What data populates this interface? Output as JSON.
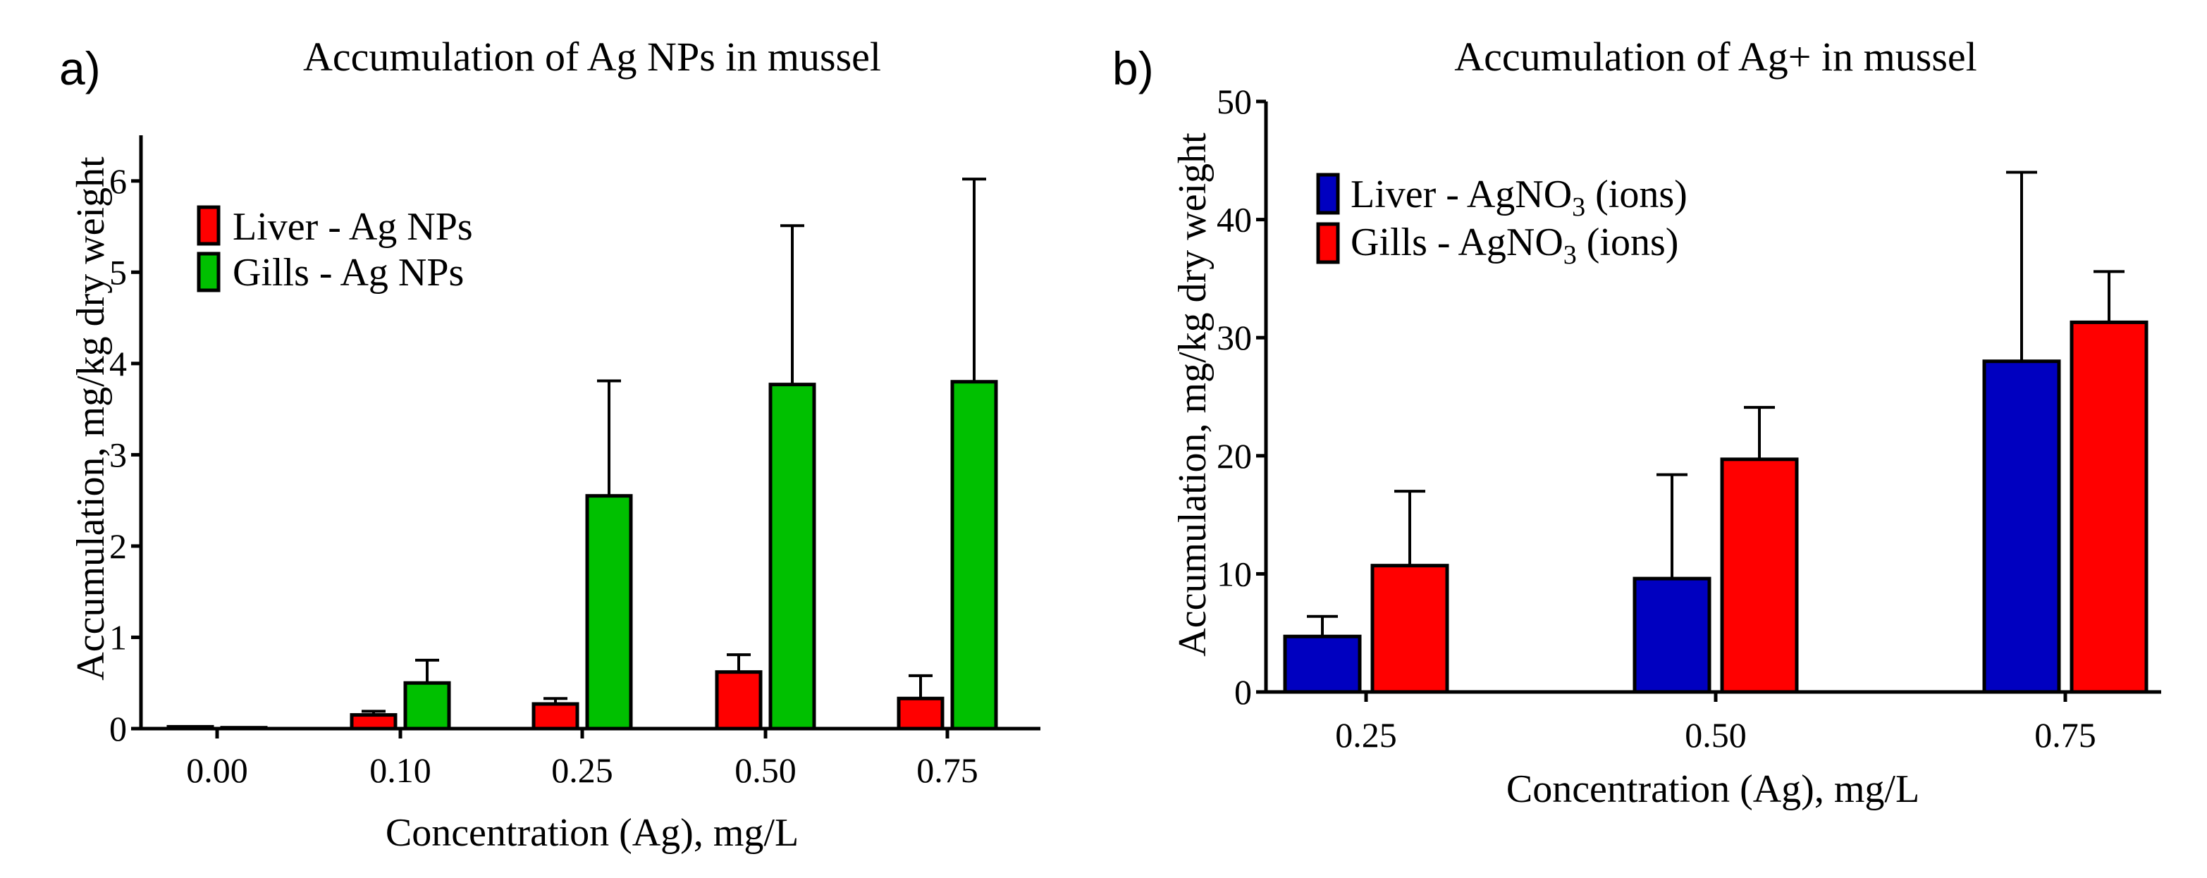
{
  "chart_data": [
    {
      "panel_label": "a)",
      "type": "bar",
      "title": "Accumulation of Ag NPs in mussel",
      "xlabel": "Concentration (Ag), mg/L",
      "ylabel": "Accumulation, mg/kg dry weight",
      "categories": [
        "0.00",
        "0.10",
        "0.25",
        "0.50",
        "0.75"
      ],
      "ylim": [
        0,
        6.5
      ],
      "yticks": [
        "0",
        "1",
        "2",
        "3",
        "4",
        "5",
        "6"
      ],
      "legend_position": "top-left",
      "series": [
        {
          "name": "Liver - Ag NPs",
          "color": "#ff0000",
          "values": [
            0.02,
            0.15,
            0.27,
            0.62,
            0.33
          ],
          "errors": [
            0.0,
            0.04,
            0.06,
            0.19,
            0.25
          ]
        },
        {
          "name": "Gills - Ag NPs",
          "color": "#00c000",
          "values": [
            0.01,
            0.5,
            2.55,
            3.77,
            3.8
          ],
          "errors": [
            0.0,
            0.25,
            1.26,
            1.74,
            2.22
          ]
        }
      ]
    },
    {
      "panel_label": "b)",
      "type": "bar",
      "title": "Accumulation of Ag+ in mussel",
      "xlabel": "Concentration (Ag), mg/L",
      "ylabel": "Accumulation, mg/kg dry weight",
      "categories": [
        "0.25",
        "0.50",
        "0.75"
      ],
      "ylim": [
        0,
        50
      ],
      "yticks": [
        "0",
        "10",
        "20",
        "30",
        "40",
        "50"
      ],
      "legend_position": "top-left",
      "series": [
        {
          "name": "Liver  - AgNO",
          "sub": "3",
          "suffix": " (ions)",
          "color": "#0000c0",
          "values": [
            4.7,
            9.6,
            28.0
          ],
          "errors": [
            1.7,
            8.8,
            16.0
          ]
        },
        {
          "name": "Gills - AgNO",
          "sub": "3",
          "suffix": " (ions)",
          "color": "#ff0000",
          "values": [
            10.7,
            19.7,
            31.3
          ],
          "errors": [
            6.3,
            4.4,
            4.3
          ]
        }
      ]
    }
  ]
}
